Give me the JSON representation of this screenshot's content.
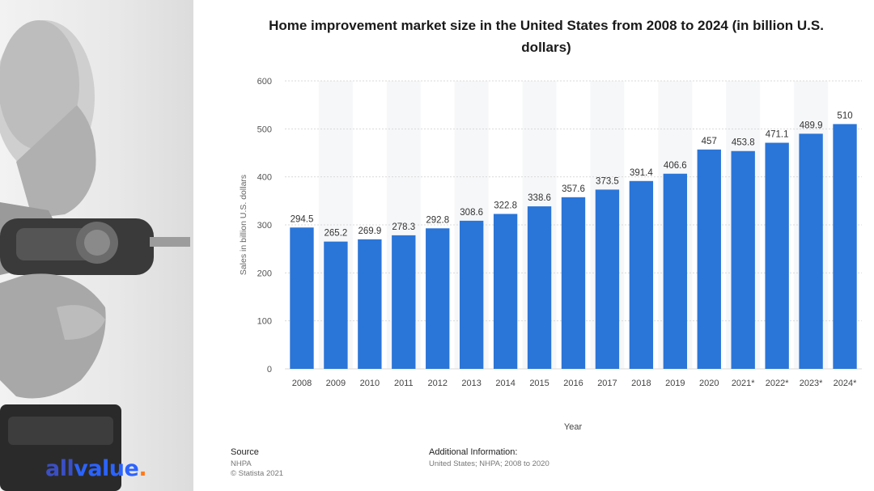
{
  "brand": {
    "prefix": "all",
    "name": "value",
    "dot": "."
  },
  "chart_data": {
    "type": "bar",
    "title": "Home improvement market size in the United States from 2008 to 2024 (in billion U.S. dollars)",
    "categories": [
      "2008",
      "2009",
      "2010",
      "2011",
      "2012",
      "2013",
      "2014",
      "2015",
      "2016",
      "2017",
      "2018",
      "2019",
      "2020",
      "2021*",
      "2022*",
      "2023*",
      "2024*"
    ],
    "values": [
      294.5,
      265.2,
      269.9,
      278.3,
      292.8,
      308.6,
      322.8,
      338.6,
      357.6,
      373.5,
      391.4,
      406.6,
      457,
      453.8,
      471.1,
      489.9,
      510
    ],
    "value_labels": [
      "294.5",
      "265.2",
      "269.9",
      "278.3",
      "292.8",
      "308.6",
      "322.8",
      "338.6",
      "357.6",
      "373.5",
      "391.4",
      "406.6",
      "457",
      "453.8",
      "471.1",
      "489.9",
      "510"
    ],
    "xlabel": "Year",
    "ylabel": "Sales in billion U.S. dollars",
    "ylim": [
      0,
      600
    ],
    "yticks": [
      0,
      100,
      200,
      300,
      400,
      500,
      600
    ],
    "grid": true,
    "bar_color": "#2a75d8"
  },
  "footer": {
    "source_label": "Source",
    "source_lines": [
      "NHPA",
      "© Statista 2021"
    ],
    "info_label": "Additional Information:",
    "info_text": "United States; NHPA; 2008 to 2020"
  }
}
